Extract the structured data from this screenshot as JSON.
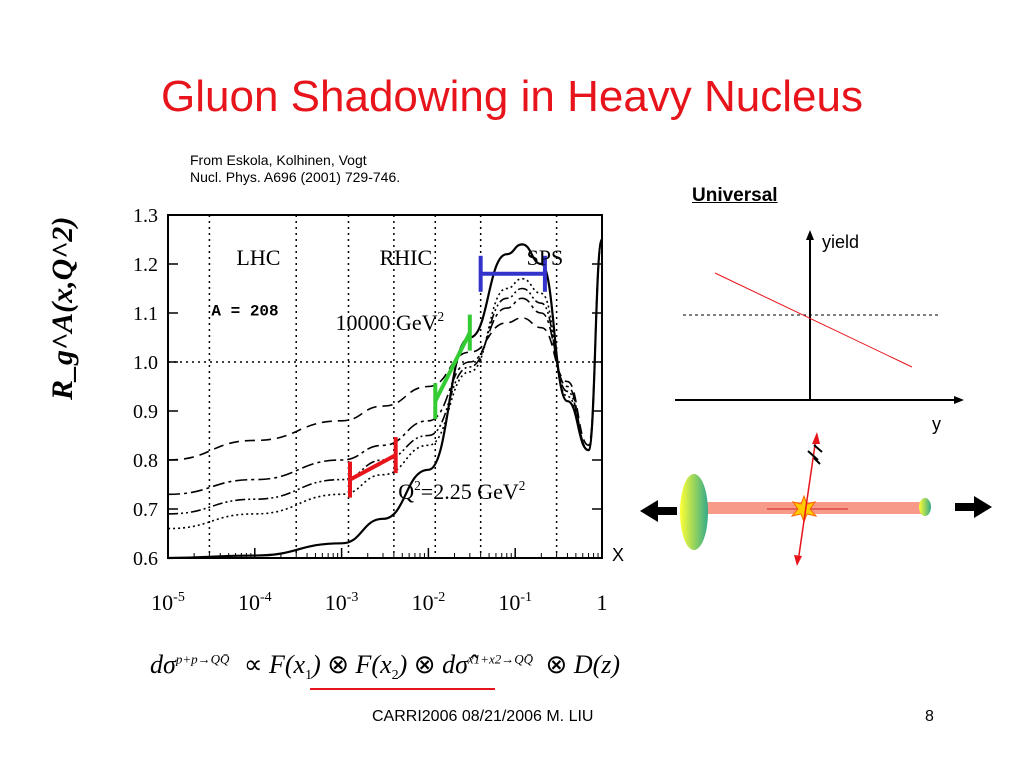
{
  "slide": {
    "title": "Gluon Shadowing in Heavy Nucleus",
    "source_line1": "From Eskola, Kolhinen, Vogt",
    "source_line2": "Nucl. Phys. A696 (2001) 729-746.",
    "footer": "CARRI2006 08/21/2006   M. LIU",
    "page_number": "8"
  },
  "colors": {
    "title": "#e8141b",
    "red_bar": "#e8141b",
    "green_bar": "#33cc33",
    "blue_bar": "#3333cc"
  },
  "chart_data": {
    "type": "line",
    "ylabel": "R_g^A(x,Q^2)",
    "ylim": [
      0.6,
      1.3
    ],
    "yticks": [
      "0.6",
      "0.7",
      "0.8",
      "0.9",
      "1.0",
      "1.1",
      "1.2",
      "1.3"
    ],
    "xscale": "log",
    "xticks": [
      "10^-5",
      "10^-4",
      "10^-3",
      "10^-2",
      "10^-1",
      "1"
    ],
    "region_labels": [
      "LHC",
      "RHIC",
      "SPS"
    ],
    "nucleus_label": "A = 208",
    "q2_high_label": "10000 GeV^2",
    "q2_low_label": "Q^2=2.25 GeV^2",
    "series": [
      {
        "style": "solid",
        "x": [
          1e-05,
          0.0001,
          0.001,
          0.003,
          0.01,
          0.03,
          0.08,
          0.12,
          0.2,
          0.4,
          0.7,
          1.0
        ],
        "values": [
          0.6,
          0.605,
          0.63,
          0.68,
          0.78,
          1.05,
          1.22,
          1.24,
          1.2,
          0.92,
          0.82,
          1.25
        ]
      },
      {
        "style": "dotted",
        "x": [
          1e-05,
          0.0001,
          0.001,
          0.003,
          0.01,
          0.03,
          0.08,
          0.12,
          0.2,
          0.4,
          0.7,
          1.0
        ],
        "values": [
          0.66,
          0.69,
          0.73,
          0.77,
          0.83,
          0.98,
          1.15,
          1.17,
          1.14,
          0.93,
          0.82,
          1.25
        ]
      },
      {
        "style": "dashdot2",
        "x": [
          1e-05,
          0.0001,
          0.001,
          0.003,
          0.01,
          0.03,
          0.08,
          0.12,
          0.2,
          0.4,
          0.7,
          1.0
        ],
        "values": [
          0.69,
          0.72,
          0.76,
          0.8,
          0.85,
          0.99,
          1.13,
          1.15,
          1.12,
          0.94,
          0.82,
          1.25
        ]
      },
      {
        "style": "dashdot",
        "x": [
          1e-05,
          0.0001,
          0.001,
          0.003,
          0.01,
          0.03,
          0.08,
          0.12,
          0.2,
          0.4,
          0.7,
          1.0
        ],
        "values": [
          0.73,
          0.76,
          0.8,
          0.83,
          0.88,
          1.0,
          1.11,
          1.13,
          1.1,
          0.95,
          0.82,
          1.25
        ]
      },
      {
        "style": "dashed",
        "x": [
          1e-05,
          0.0001,
          0.001,
          0.003,
          0.01,
          0.03,
          0.08,
          0.12,
          0.2,
          0.4,
          0.7,
          1.0
        ],
        "values": [
          0.8,
          0.84,
          0.88,
          0.91,
          0.95,
          1.02,
          1.08,
          1.09,
          1.07,
          0.96,
          0.83,
          1.25
        ]
      }
    ],
    "vlines_x": [
      3e-05,
      0.0003,
      0.0012,
      0.004,
      0.012,
      0.04,
      0.3
    ],
    "hline_y": 1.0,
    "bars": [
      {
        "color": "red",
        "x1": 0.00125,
        "y1": 0.76,
        "x2": 0.0042,
        "y2": 0.81
      },
      {
        "color": "green",
        "x1": 0.012,
        "y1": 0.92,
        "x2": 0.03,
        "y2": 1.06
      },
      {
        "color": "blue",
        "x1": 0.04,
        "y1": 1.18,
        "x2": 0.22,
        "y2": 1.18
      }
    ]
  },
  "inset": {
    "heading": "Universal",
    "y_axis_label": "yield",
    "x_axis_label": "y"
  },
  "x_marker": "X",
  "formula": {
    "lhs": "dσ",
    "lhs_sup": "p+p→QQ̄",
    "prop": "∝",
    "f1": "F(x",
    "f1_sub": "1",
    "close": ")",
    "otimes": "⊗",
    "f2": "F(x",
    "f2_sub": "2",
    "dsig": "dσ̂",
    "dsig_sup": "x1+x2→QQ̄",
    "dz": "D(z)"
  }
}
